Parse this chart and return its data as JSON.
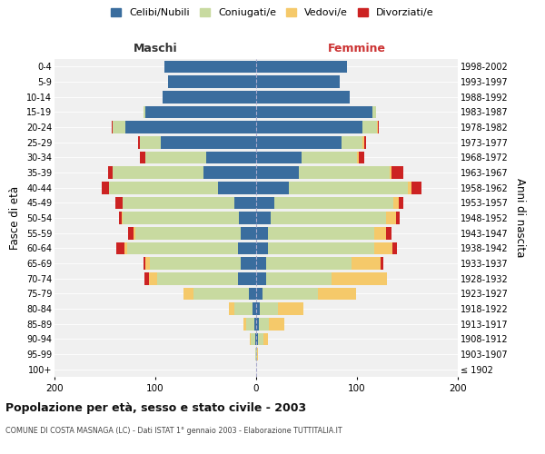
{
  "age_groups": [
    "100+",
    "95-99",
    "90-94",
    "85-89",
    "80-84",
    "75-79",
    "70-74",
    "65-69",
    "60-64",
    "55-59",
    "50-54",
    "45-49",
    "40-44",
    "35-39",
    "30-34",
    "25-29",
    "20-24",
    "15-19",
    "10-14",
    "5-9",
    "0-4"
  ],
  "birth_years": [
    "≤ 1902",
    "1903-1907",
    "1908-1912",
    "1913-1917",
    "1918-1922",
    "1923-1927",
    "1928-1932",
    "1933-1937",
    "1938-1942",
    "1943-1947",
    "1948-1952",
    "1953-1957",
    "1958-1962",
    "1963-1967",
    "1968-1972",
    "1973-1977",
    "1978-1982",
    "1983-1987",
    "1988-1992",
    "1993-1997",
    "1998-2002"
  ],
  "male": {
    "celibi": [
      0,
      0,
      1,
      2,
      4,
      7,
      18,
      15,
      18,
      15,
      17,
      22,
      38,
      52,
      50,
      95,
      130,
      110,
      93,
      87,
      91
    ],
    "coniugati": [
      0,
      1,
      4,
      8,
      18,
      55,
      80,
      90,
      110,
      105,
      115,
      110,
      108,
      90,
      60,
      20,
      12,
      2,
      0,
      0,
      0
    ],
    "vedovi": [
      0,
      0,
      1,
      3,
      5,
      10,
      8,
      5,
      3,
      2,
      1,
      0,
      0,
      0,
      0,
      0,
      0,
      0,
      0,
      0,
      0
    ],
    "divorziati": [
      0,
      0,
      0,
      0,
      0,
      0,
      5,
      2,
      8,
      5,
      3,
      8,
      7,
      5,
      5,
      2,
      1,
      0,
      0,
      0,
      0
    ]
  },
  "female": {
    "nubili": [
      0,
      0,
      2,
      3,
      4,
      6,
      10,
      10,
      12,
      12,
      14,
      18,
      32,
      42,
      45,
      85,
      105,
      115,
      93,
      83,
      90
    ],
    "coniugate": [
      0,
      1,
      5,
      10,
      18,
      55,
      65,
      85,
      105,
      105,
      115,
      118,
      118,
      90,
      55,
      20,
      15,
      4,
      0,
      0,
      0
    ],
    "vedove": [
      0,
      1,
      5,
      15,
      25,
      38,
      55,
      28,
      18,
      12,
      10,
      5,
      4,
      2,
      2,
      2,
      1,
      0,
      0,
      0,
      0
    ],
    "divorziate": [
      0,
      0,
      0,
      0,
      0,
      0,
      0,
      3,
      5,
      5,
      3,
      5,
      10,
      12,
      5,
      2,
      1,
      0,
      0,
      0,
      0
    ]
  },
  "colors": {
    "celibi": "#3a6d9e",
    "coniugati": "#c8daa0",
    "vedovi": "#f5c96a",
    "divorziati": "#cc2222"
  },
  "title": "Popolazione per età, sesso e stato civile - 2003",
  "subtitle": "COMUNE DI COSTA MASNAGA (LC) - Dati ISTAT 1° gennaio 2003 - Elaborazione TUTTITALIA.IT",
  "xlabel_left": "Maschi",
  "xlabel_right": "Femmine",
  "ylabel_left": "Fasce di età",
  "ylabel_right": "Anni di nascita",
  "xlim": 200,
  "legend_labels": [
    "Celibi/Nubili",
    "Coniugati/e",
    "Vedovi/e",
    "Divorziati/e"
  ],
  "bg_color": "#ffffff",
  "plot_bg": "#f0f0f0"
}
